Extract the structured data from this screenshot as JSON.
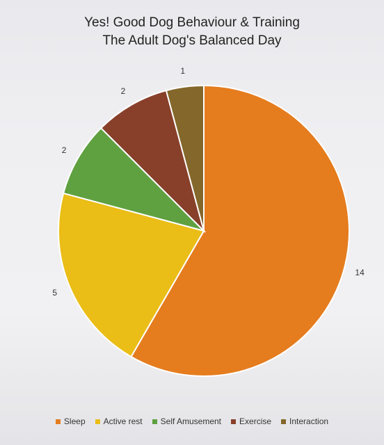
{
  "chart_data": {
    "type": "pie",
    "title": [
      "Yes! Good Dog Behaviour & Training",
      "The Adult Dog's Balanced Day"
    ],
    "categories": [
      "Sleep",
      "Active rest",
      "Self Amusement",
      "Exercise",
      "Interaction"
    ],
    "values": [
      14,
      5,
      2,
      2,
      1
    ],
    "colors": [
      "#e57c1e",
      "#eabd17",
      "#5fa040",
      "#88402a",
      "#84672a"
    ],
    "legend_position": "bottom"
  }
}
